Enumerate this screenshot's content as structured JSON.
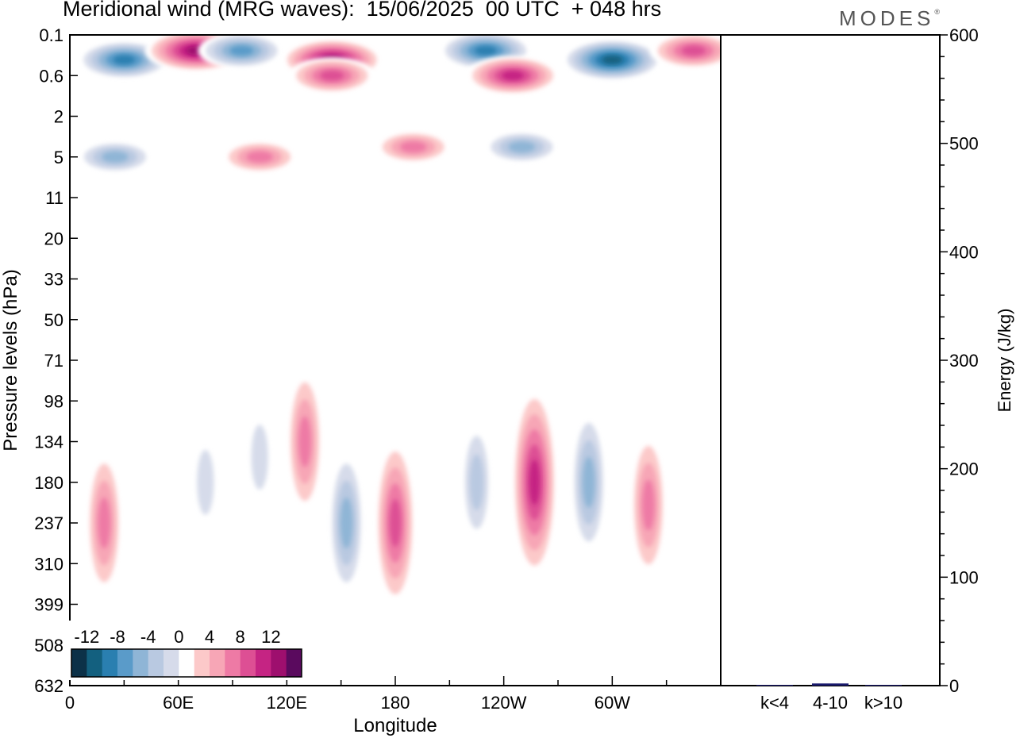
{
  "title": "Meridional wind (MRG waves):  15/06/2025  00 UTC  + 048 hrs",
  "logo": "MODES",
  "chart_data": [
    {
      "type": "heatmap",
      "field": "Meridional wind",
      "xlabel": "Longitude",
      "ylabel": "Pressure levels (hPa)",
      "x_ticks": [
        "0",
        "60E",
        "120E",
        "180",
        "120W",
        "60W"
      ],
      "x_range": [
        0,
        360
      ],
      "y_levels": [
        "0.1",
        "0.6",
        "2",
        "5",
        "11",
        "20",
        "33",
        "50",
        "71",
        "98",
        "134",
        "180",
        "237",
        "310",
        "399",
        "508",
        "632"
      ],
      "colorbar": {
        "labels": [
          "-12",
          "-8",
          "-4",
          "0",
          "4",
          "8",
          "12"
        ],
        "levels": [
          -14,
          -12,
          -10,
          -8,
          -6,
          -4,
          -2,
          2,
          4,
          6,
          8,
          10,
          12,
          14
        ],
        "colors": [
          "#0c3148",
          "#13607f",
          "#2a7fb0",
          "#5a9bc9",
          "#8fb5d6",
          "#b9c9e1",
          "#d6dbea",
          "#ffffff",
          "#fcc9c9",
          "#f7a6b6",
          "#ee7aa5",
          "#dd4f94",
          "#c52483",
          "#9e0f6e",
          "#5a0a5e"
        ]
      },
      "features": [
        {
          "lon": 30,
          "level": 0.3,
          "value": -12
        },
        {
          "lon": 70,
          "level": 0.2,
          "value": 14
        },
        {
          "lon": 95,
          "level": 0.2,
          "value": -10
        },
        {
          "lon": 145,
          "level": 0.3,
          "value": 14
        },
        {
          "lon": 145,
          "level": 0.6,
          "value": 10
        },
        {
          "lon": 230,
          "level": 0.2,
          "value": -12
        },
        {
          "lon": 245,
          "level": 0.6,
          "value": 12
        },
        {
          "lon": 300,
          "level": 0.3,
          "value": -14
        },
        {
          "lon": 345,
          "level": 0.2,
          "value": 10
        },
        {
          "lon": 190,
          "level": 4,
          "value": 8
        },
        {
          "lon": 105,
          "level": 5,
          "value": 8
        },
        {
          "lon": 25,
          "level": 5,
          "value": -8
        },
        {
          "lon": 250,
          "level": 4,
          "value": -8
        },
        {
          "lon": 130,
          "level": 134,
          "value": 8
        },
        {
          "lon": 153,
          "level": 237,
          "value": -8
        },
        {
          "lon": 180,
          "level": 237,
          "value": 10
        },
        {
          "lon": 19,
          "level": 237,
          "value": 8
        },
        {
          "lon": 257,
          "level": 180,
          "value": 12
        },
        {
          "lon": 287,
          "level": 180,
          "value": -8
        },
        {
          "lon": 320,
          "level": 210,
          "value": 8
        },
        {
          "lon": 225,
          "level": 180,
          "value": -6
        },
        {
          "lon": 75,
          "level": 180,
          "value": -4
        },
        {
          "lon": 105,
          "level": 150,
          "value": -4
        }
      ]
    },
    {
      "type": "bar",
      "ylabel": "Energy (J/kg)",
      "categories": [
        "k<4",
        "4-10",
        "k>10"
      ],
      "values": [
        0.5,
        2,
        0.3
      ],
      "ylim": [
        0,
        600
      ],
      "y_ticks": [
        "0",
        "100",
        "200",
        "300",
        "400",
        "500",
        "600"
      ],
      "bar_color": "#1a1a6e"
    }
  ]
}
